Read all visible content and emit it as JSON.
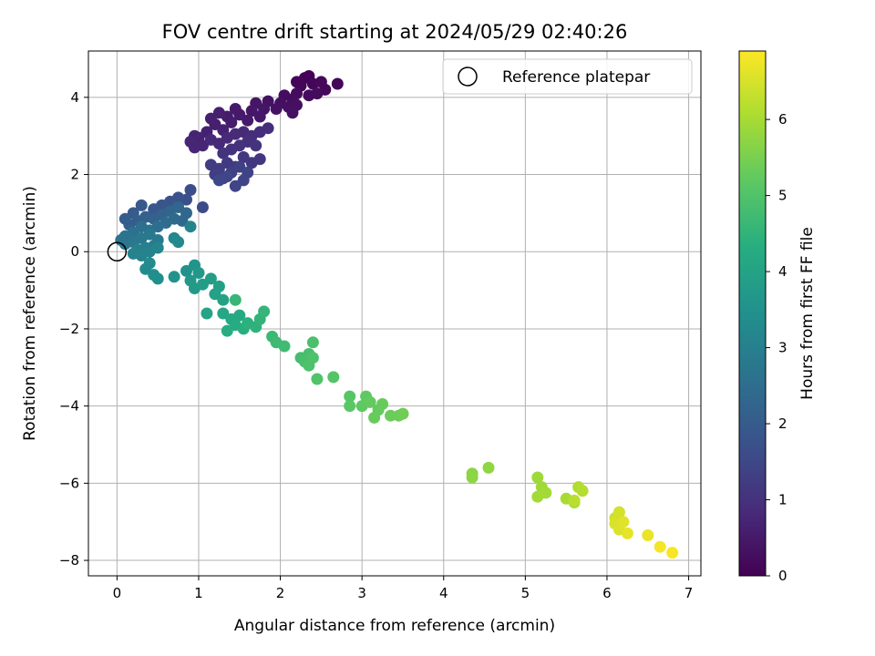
{
  "chart_data": {
    "type": "scatter",
    "title": "FOV centre drift starting at 2024/05/29 02:40:26",
    "xlabel": "Angular distance from reference (arcmin)",
    "ylabel": "Rotation from reference (arcmin)",
    "xlim": [
      -0.35,
      7.15
    ],
    "ylim": [
      -8.4,
      5.2
    ],
    "xticks": [
      "0",
      "1",
      "2",
      "3",
      "4",
      "5",
      "6",
      "7"
    ],
    "yticks": [
      "−8",
      "−6",
      "−4",
      "−2",
      "0",
      "2",
      "4"
    ],
    "grid": true,
    "legend": {
      "placement": "top-right",
      "entries": [
        "Reference platepar"
      ]
    },
    "colorbar": {
      "label": "Hours from first FF file",
      "range": [
        0,
        6.9
      ],
      "ticks": [
        "0",
        "1",
        "2",
        "3",
        "4",
        "5",
        "6"
      ],
      "colormap": "viridis"
    },
    "reference_point": {
      "x": 0,
      "y": 0,
      "marker": "open-circle"
    },
    "series": [
      {
        "points": [
          [
            2.3,
            4.5,
            0.05
          ],
          [
            2.35,
            4.55,
            0.05
          ],
          [
            2.2,
            4.4,
            0.1
          ],
          [
            2.25,
            4.3,
            0.1
          ],
          [
            2.4,
            4.35,
            0.1
          ],
          [
            2.5,
            4.4,
            0.15
          ],
          [
            2.55,
            4.2,
            0.15
          ],
          [
            2.7,
            4.35,
            0.1
          ],
          [
            2.45,
            4.1,
            0.2
          ],
          [
            2.35,
            4.05,
            0.2
          ],
          [
            2.2,
            4.1,
            0.2
          ],
          [
            2.15,
            3.95,
            0.25
          ],
          [
            2.05,
            4.05,
            0.25
          ],
          [
            2.0,
            3.85,
            0.3
          ],
          [
            2.1,
            3.75,
            0.3
          ],
          [
            2.2,
            3.8,
            0.3
          ],
          [
            2.15,
            3.6,
            0.35
          ],
          [
            1.95,
            3.7,
            0.35
          ],
          [
            1.85,
            3.9,
            0.35
          ],
          [
            1.8,
            3.7,
            0.4
          ],
          [
            1.7,
            3.85,
            0.4
          ],
          [
            1.75,
            3.5,
            0.45
          ],
          [
            1.65,
            3.65,
            0.45
          ],
          [
            1.6,
            3.4,
            0.5
          ],
          [
            1.5,
            3.55,
            0.5
          ],
          [
            1.45,
            3.7,
            0.5
          ],
          [
            1.4,
            3.35,
            0.55
          ],
          [
            1.35,
            3.5,
            0.55
          ],
          [
            1.25,
            3.6,
            0.6
          ],
          [
            1.2,
            3.3,
            0.6
          ],
          [
            1.15,
            3.45,
            0.6
          ],
          [
            1.3,
            3.15,
            0.65
          ],
          [
            1.1,
            3.1,
            0.65
          ],
          [
            1.0,
            2.95,
            0.7
          ],
          [
            0.95,
            3.0,
            0.7
          ],
          [
            0.9,
            2.85,
            0.75
          ],
          [
            0.95,
            2.7,
            0.75
          ],
          [
            1.05,
            2.75,
            0.75
          ],
          [
            1.15,
            2.9,
            0.8
          ],
          [
            1.25,
            2.8,
            0.8
          ],
          [
            1.35,
            2.95,
            0.85
          ],
          [
            1.45,
            3.05,
            0.85
          ],
          [
            1.55,
            3.1,
            0.85
          ],
          [
            1.65,
            3.0,
            0.9
          ],
          [
            1.75,
            3.1,
            0.9
          ],
          [
            1.85,
            3.2,
            0.9
          ],
          [
            1.6,
            2.85,
            0.95
          ],
          [
            1.5,
            2.75,
            1.0
          ],
          [
            1.4,
            2.65,
            1.0
          ],
          [
            1.3,
            2.55,
            1.05
          ],
          [
            1.7,
            2.75,
            1.05
          ],
          [
            1.75,
            2.4,
            1.1
          ],
          [
            1.65,
            2.3,
            1.15
          ],
          [
            1.55,
            2.45,
            1.15
          ],
          [
            1.45,
            2.2,
            1.2
          ],
          [
            1.35,
            2.3,
            1.2
          ],
          [
            1.25,
            2.15,
            1.25
          ],
          [
            1.15,
            2.25,
            1.25
          ],
          [
            1.2,
            2.0,
            1.3
          ],
          [
            1.3,
            1.9,
            1.3
          ],
          [
            1.4,
            2.05,
            1.35
          ],
          [
            1.5,
            2.2,
            1.35
          ],
          [
            1.6,
            2.05,
            1.4
          ],
          [
            1.55,
            1.85,
            1.4
          ],
          [
            1.45,
            1.7,
            1.45
          ],
          [
            1.35,
            1.95,
            1.45
          ],
          [
            1.25,
            1.85,
            1.5
          ],
          [
            1.05,
            1.15,
            1.6
          ],
          [
            0.9,
            1.6,
            1.65
          ],
          [
            0.85,
            1.35,
            1.7
          ],
          [
            0.75,
            1.4,
            1.75
          ],
          [
            0.65,
            1.3,
            1.8
          ],
          [
            0.55,
            1.2,
            1.85
          ],
          [
            0.45,
            1.1,
            1.9
          ],
          [
            0.3,
            1.2,
            1.95
          ],
          [
            0.2,
            1.0,
            2.0
          ],
          [
            0.1,
            0.85,
            2.05
          ],
          [
            0.15,
            0.7,
            2.1
          ],
          [
            0.25,
            0.8,
            2.1
          ],
          [
            0.35,
            0.9,
            2.15
          ],
          [
            0.45,
            0.85,
            2.2
          ],
          [
            0.55,
            0.95,
            2.2
          ],
          [
            0.65,
            1.05,
            2.25
          ],
          [
            0.75,
            1.15,
            2.3
          ],
          [
            0.85,
            1.0,
            2.3
          ],
          [
            0.8,
            0.8,
            2.35
          ],
          [
            0.7,
            0.85,
            2.4
          ],
          [
            0.6,
            0.75,
            2.45
          ],
          [
            0.5,
            0.65,
            2.5
          ],
          [
            0.4,
            0.55,
            2.55
          ],
          [
            0.3,
            0.65,
            2.55
          ],
          [
            0.2,
            0.5,
            2.6
          ],
          [
            0.1,
            0.4,
            2.65
          ],
          [
            0.05,
            0.3,
            2.65
          ],
          [
            0.1,
            0.2,
            2.7
          ],
          [
            0.2,
            0.25,
            2.75
          ],
          [
            0.3,
            0.35,
            2.75
          ],
          [
            0.4,
            0.45,
            2.8
          ],
          [
            0.5,
            0.3,
            2.85
          ],
          [
            0.45,
            0.15,
            2.9
          ],
          [
            0.35,
            0.1,
            2.95
          ],
          [
            0.25,
            0.05,
            3.0
          ],
          [
            0.2,
            -0.05,
            3.05
          ],
          [
            0.3,
            -0.1,
            3.05
          ],
          [
            0.4,
            0.0,
            3.1
          ],
          [
            0.5,
            0.1,
            3.15
          ],
          [
            0.9,
            0.65,
            3.1
          ],
          [
            0.7,
            0.35,
            3.2
          ],
          [
            0.75,
            0.25,
            3.25
          ],
          [
            0.4,
            -0.3,
            3.3
          ],
          [
            0.35,
            -0.45,
            3.35
          ],
          [
            0.45,
            -0.6,
            3.4
          ],
          [
            0.5,
            -0.7,
            3.45
          ],
          [
            0.7,
            -0.65,
            3.5
          ],
          [
            0.85,
            -0.5,
            3.55
          ],
          [
            0.95,
            -0.35,
            3.6
          ],
          [
            1.0,
            -0.55,
            3.65
          ],
          [
            0.9,
            -0.75,
            3.7
          ],
          [
            0.95,
            -0.95,
            3.75
          ],
          [
            1.05,
            -0.85,
            3.8
          ],
          [
            1.15,
            -0.7,
            3.85
          ],
          [
            1.25,
            -0.9,
            3.9
          ],
          [
            1.2,
            -1.1,
            3.95
          ],
          [
            1.3,
            -1.25,
            4.0
          ],
          [
            1.1,
            -1.6,
            4.05
          ],
          [
            1.3,
            -1.6,
            4.1
          ],
          [
            1.4,
            -1.75,
            4.15
          ],
          [
            1.5,
            -1.65,
            4.2
          ],
          [
            1.45,
            -1.9,
            4.25
          ],
          [
            1.35,
            -2.05,
            4.3
          ],
          [
            1.55,
            -2.0,
            4.35
          ],
          [
            1.6,
            -1.85,
            4.4
          ],
          [
            1.7,
            -1.95,
            4.45
          ],
          [
            1.75,
            -1.75,
            4.5
          ],
          [
            1.8,
            -1.55,
            4.55
          ],
          [
            1.45,
            -1.25,
            4.6
          ],
          [
            1.9,
            -2.2,
            4.65
          ],
          [
            1.95,
            -2.35,
            4.7
          ],
          [
            2.05,
            -2.45,
            4.75
          ],
          [
            2.25,
            -2.75,
            4.8
          ],
          [
            2.3,
            -2.85,
            4.85
          ],
          [
            2.35,
            -2.65,
            4.85
          ],
          [
            2.4,
            -2.35,
            4.9
          ],
          [
            2.4,
            -2.75,
            4.95
          ],
          [
            2.35,
            -2.95,
            4.95
          ],
          [
            2.45,
            -3.3,
            5.0
          ],
          [
            2.65,
            -3.25,
            5.05
          ],
          [
            2.85,
            -3.75,
            5.1
          ],
          [
            2.85,
            -4.0,
            5.15
          ],
          [
            3.0,
            -4.0,
            5.2
          ],
          [
            3.05,
            -3.75,
            5.2
          ],
          [
            3.1,
            -3.9,
            5.25
          ],
          [
            3.2,
            -4.1,
            5.25
          ],
          [
            3.25,
            -3.95,
            5.3
          ],
          [
            3.15,
            -4.3,
            5.3
          ],
          [
            3.35,
            -4.25,
            5.35
          ],
          [
            3.45,
            -4.25,
            5.35
          ],
          [
            3.5,
            -4.2,
            5.4
          ],
          [
            4.35,
            -5.75,
            5.7
          ],
          [
            4.35,
            -5.85,
            5.72
          ],
          [
            4.55,
            -5.6,
            5.75
          ],
          [
            5.15,
            -5.85,
            5.9
          ],
          [
            5.2,
            -6.1,
            5.92
          ],
          [
            5.25,
            -6.25,
            5.95
          ],
          [
            5.15,
            -6.35,
            5.97
          ],
          [
            5.5,
            -6.4,
            6.0
          ],
          [
            5.6,
            -6.5,
            6.05
          ],
          [
            5.65,
            -6.1,
            6.1
          ],
          [
            5.7,
            -6.2,
            6.15
          ],
          [
            5.6,
            -6.45,
            6.2
          ],
          [
            6.1,
            -6.9,
            6.4
          ],
          [
            6.15,
            -6.75,
            6.45
          ],
          [
            6.1,
            -7.05,
            6.5
          ],
          [
            6.15,
            -7.2,
            6.55
          ],
          [
            6.2,
            -7.0,
            6.6
          ],
          [
            6.25,
            -7.3,
            6.65
          ],
          [
            6.5,
            -7.35,
            6.7
          ],
          [
            6.65,
            -7.65,
            6.8
          ],
          [
            6.8,
            -7.8,
            6.85
          ]
        ]
      }
    ]
  }
}
